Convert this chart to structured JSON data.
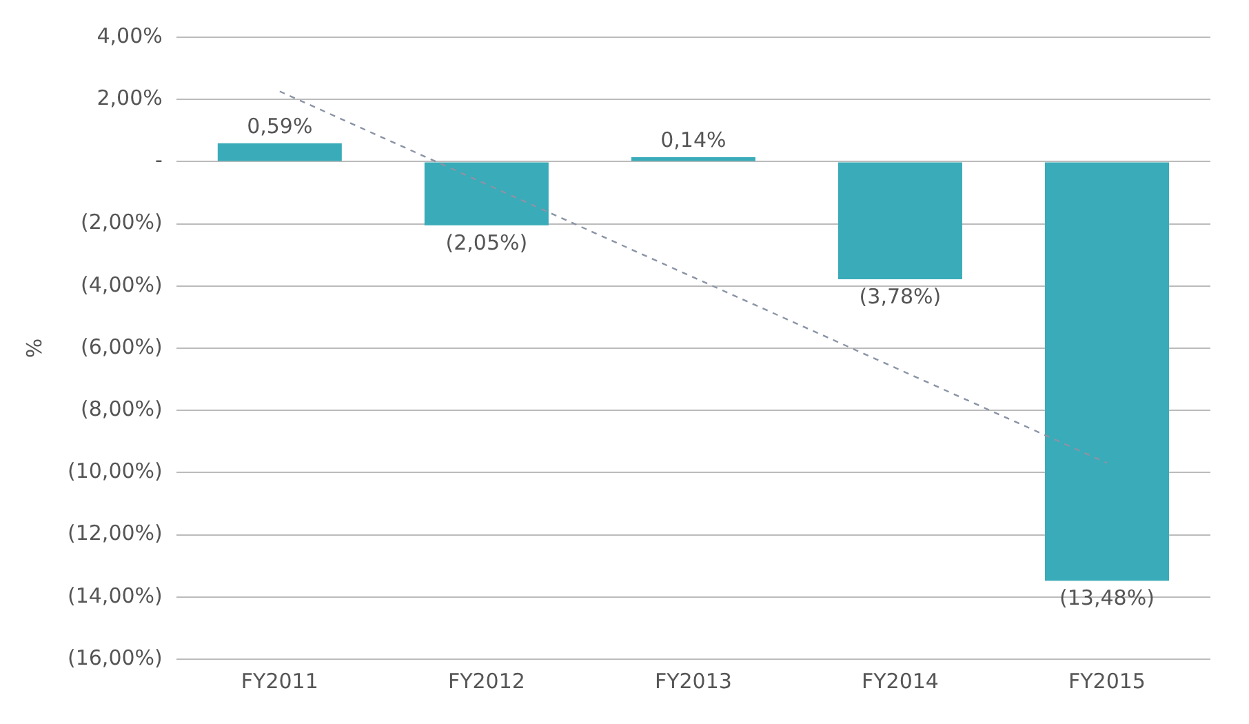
{
  "chart_data": {
    "type": "bar",
    "ylabel": "%",
    "categories": [
      "FY2011",
      "FY2012",
      "FY2013",
      "FY2014",
      "FY2015"
    ],
    "series": [
      {
        "color": "#3aabb8",
        "values": [
          0.59,
          -2.05,
          0.14,
          -3.78,
          -13.48
        ],
        "value_labels": [
          "0,59%",
          "(2,05%)",
          "0,14%",
          "(3,78%)",
          "(13,48%)"
        ]
      },
      {
        "type": "line",
        "color": "#8a94a6",
        "line_style": "dashed",
        "marker": "none",
        "x": [
          "FY2011",
          "FY2012",
          "FY2013",
          "FY2014",
          "FY2015"
        ],
        "values": [
          2.26,
          -0.73,
          -3.72,
          -6.7,
          -9.69
        ]
      }
    ],
    "ylim": [
      -16,
      4
    ],
    "yticks": [
      {
        "value": -16,
        "label": "(16,00%)"
      },
      {
        "value": -14,
        "label": "(14,00%)"
      },
      {
        "value": -12,
        "label": "(12,00%)"
      },
      {
        "value": -10,
        "label": "(10,00%)"
      },
      {
        "value": -8,
        "label": "(8,00%)"
      },
      {
        "value": -6,
        "label": "(6,00%)"
      },
      {
        "value": -4,
        "label": "(4,00%)"
      },
      {
        "value": -2,
        "label": "(2,00%)"
      },
      {
        "value": 0,
        "label": "-"
      },
      {
        "value": 2,
        "label": "2,00%"
      },
      {
        "value": 4,
        "label": "4,00%"
      }
    ],
    "grid": "y",
    "legend": false
  }
}
